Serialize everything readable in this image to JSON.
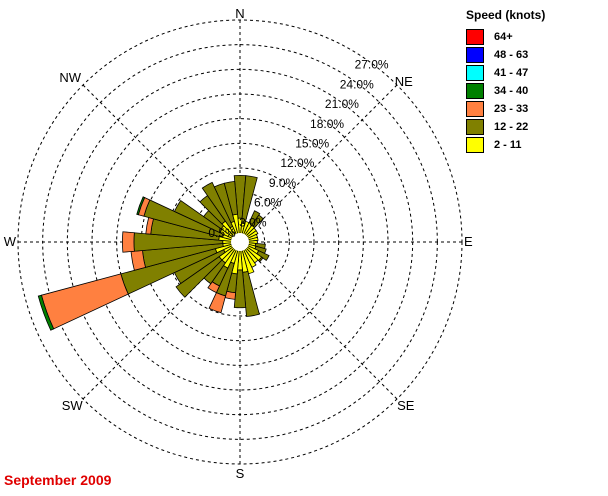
{
  "chart_data": {
    "type": "wind-rose",
    "title": "September 2009",
    "directions": [
      "N",
      "NE",
      "E",
      "SE",
      "S",
      "SW",
      "W",
      "NW"
    ],
    "ring_labels": [
      "0.5%",
      "3.0%",
      "6.0%",
      "9.0%",
      "12.0%",
      "15.0%",
      "18.0%",
      "21.0%",
      "24.0%",
      "27.0%"
    ],
    "rmax": 27,
    "legend_title": "Speed (knots)",
    "speed_bins": [
      {
        "label": "64+",
        "color": "#ff0000"
      },
      {
        "label": "48 - 63",
        "color": "#0000ff"
      },
      {
        "label": "41 - 47",
        "color": "#00ffff"
      },
      {
        "label": "34 - 40",
        "color": "#008000"
      },
      {
        "label": "23 - 33",
        "color": "#ff8040"
      },
      {
        "label": "12 - 22",
        "color": "#808000"
      },
      {
        "label": "2 - 11",
        "color": "#ffff00"
      }
    ],
    "sectors": [
      {
        "dir": 0,
        "cumulative": [
          2.9,
          8.1
        ]
      },
      {
        "dir": 10,
        "cumulative": [
          2.3,
          8.1
        ]
      },
      {
        "dir": 20,
        "cumulative": [
          2.6
        ]
      },
      {
        "dir": 30,
        "cumulative": [
          2.6,
          4.2
        ]
      },
      {
        "dir": 40,
        "cumulative": [
          2.5,
          4.0
        ]
      },
      {
        "dir": 50,
        "cumulative": [
          2.4
        ]
      },
      {
        "dir": 60,
        "cumulative": [
          2.4
        ]
      },
      {
        "dir": 70,
        "cumulative": [
          2.2
        ]
      },
      {
        "dir": 80,
        "cumulative": [
          2.2
        ]
      },
      {
        "dir": 90,
        "cumulative": [
          2.1
        ]
      },
      {
        "dir": 100,
        "cumulative": [
          1.9,
          3.1
        ]
      },
      {
        "dir": 110,
        "cumulative": [
          2.0,
          3.3
        ]
      },
      {
        "dir": 120,
        "cumulative": [
          2.5,
          3.9
        ]
      },
      {
        "dir": 130,
        "cumulative": [
          3.2,
          3.4
        ]
      },
      {
        "dir": 140,
        "cumulative": [
          3.1
        ]
      },
      {
        "dir": 150,
        "cumulative": [
          3.4
        ]
      },
      {
        "dir": 160,
        "cumulative": [
          4.0
        ]
      },
      {
        "dir": 170,
        "cumulative": [
          3.7,
          9.1
        ]
      },
      {
        "dir": 180,
        "cumulative": [
          3.4,
          8.0
        ]
      },
      {
        "dir": 190,
        "cumulative": [
          3.9,
          6.2,
          7.0
        ]
      },
      {
        "dir": 200,
        "cumulative": [
          2.7,
          6.8,
          8.9
        ]
      },
      {
        "dir": 210,
        "cumulative": [
          3.5,
          5.9,
          6.8
        ]
      },
      {
        "dir": 220,
        "cumulative": [
          3.1,
          6.2
        ]
      },
      {
        "dir": 230,
        "cumulative": [
          3.1,
          9.5
        ]
      },
      {
        "dir": 240,
        "cumulative": [
          2.2,
          8.8
        ]
      },
      {
        "dir": 250,
        "cumulative": [
          3.1,
          15.0,
          25.0,
          25.4
        ]
      },
      {
        "dir": 260,
        "cumulative": [
          2.1,
          11.9,
          13.3
        ]
      },
      {
        "dir": 270,
        "cumulative": [
          2.1,
          12.9,
          14.3
        ]
      },
      {
        "dir": 280,
        "cumulative": [
          2.6,
          10.9,
          11.5
        ]
      },
      {
        "dir": 290,
        "cumulative": [
          2.3,
          12.1,
          12.8,
          13.0
        ]
      },
      {
        "dir": 300,
        "cumulative": [
          2.7,
          8.8
        ]
      },
      {
        "dir": 310,
        "cumulative": [
          2.8,
          5.4
        ]
      },
      {
        "dir": 320,
        "cumulative": [
          3.1,
          6.9
        ]
      },
      {
        "dir": 330,
        "cumulative": [
          2.1,
          8.0
        ]
      },
      {
        "dir": 340,
        "cumulative": [
          2.6,
          7.4
        ]
      },
      {
        "dir": 350,
        "cumulative": [
          3.4,
          7.4
        ]
      }
    ]
  }
}
